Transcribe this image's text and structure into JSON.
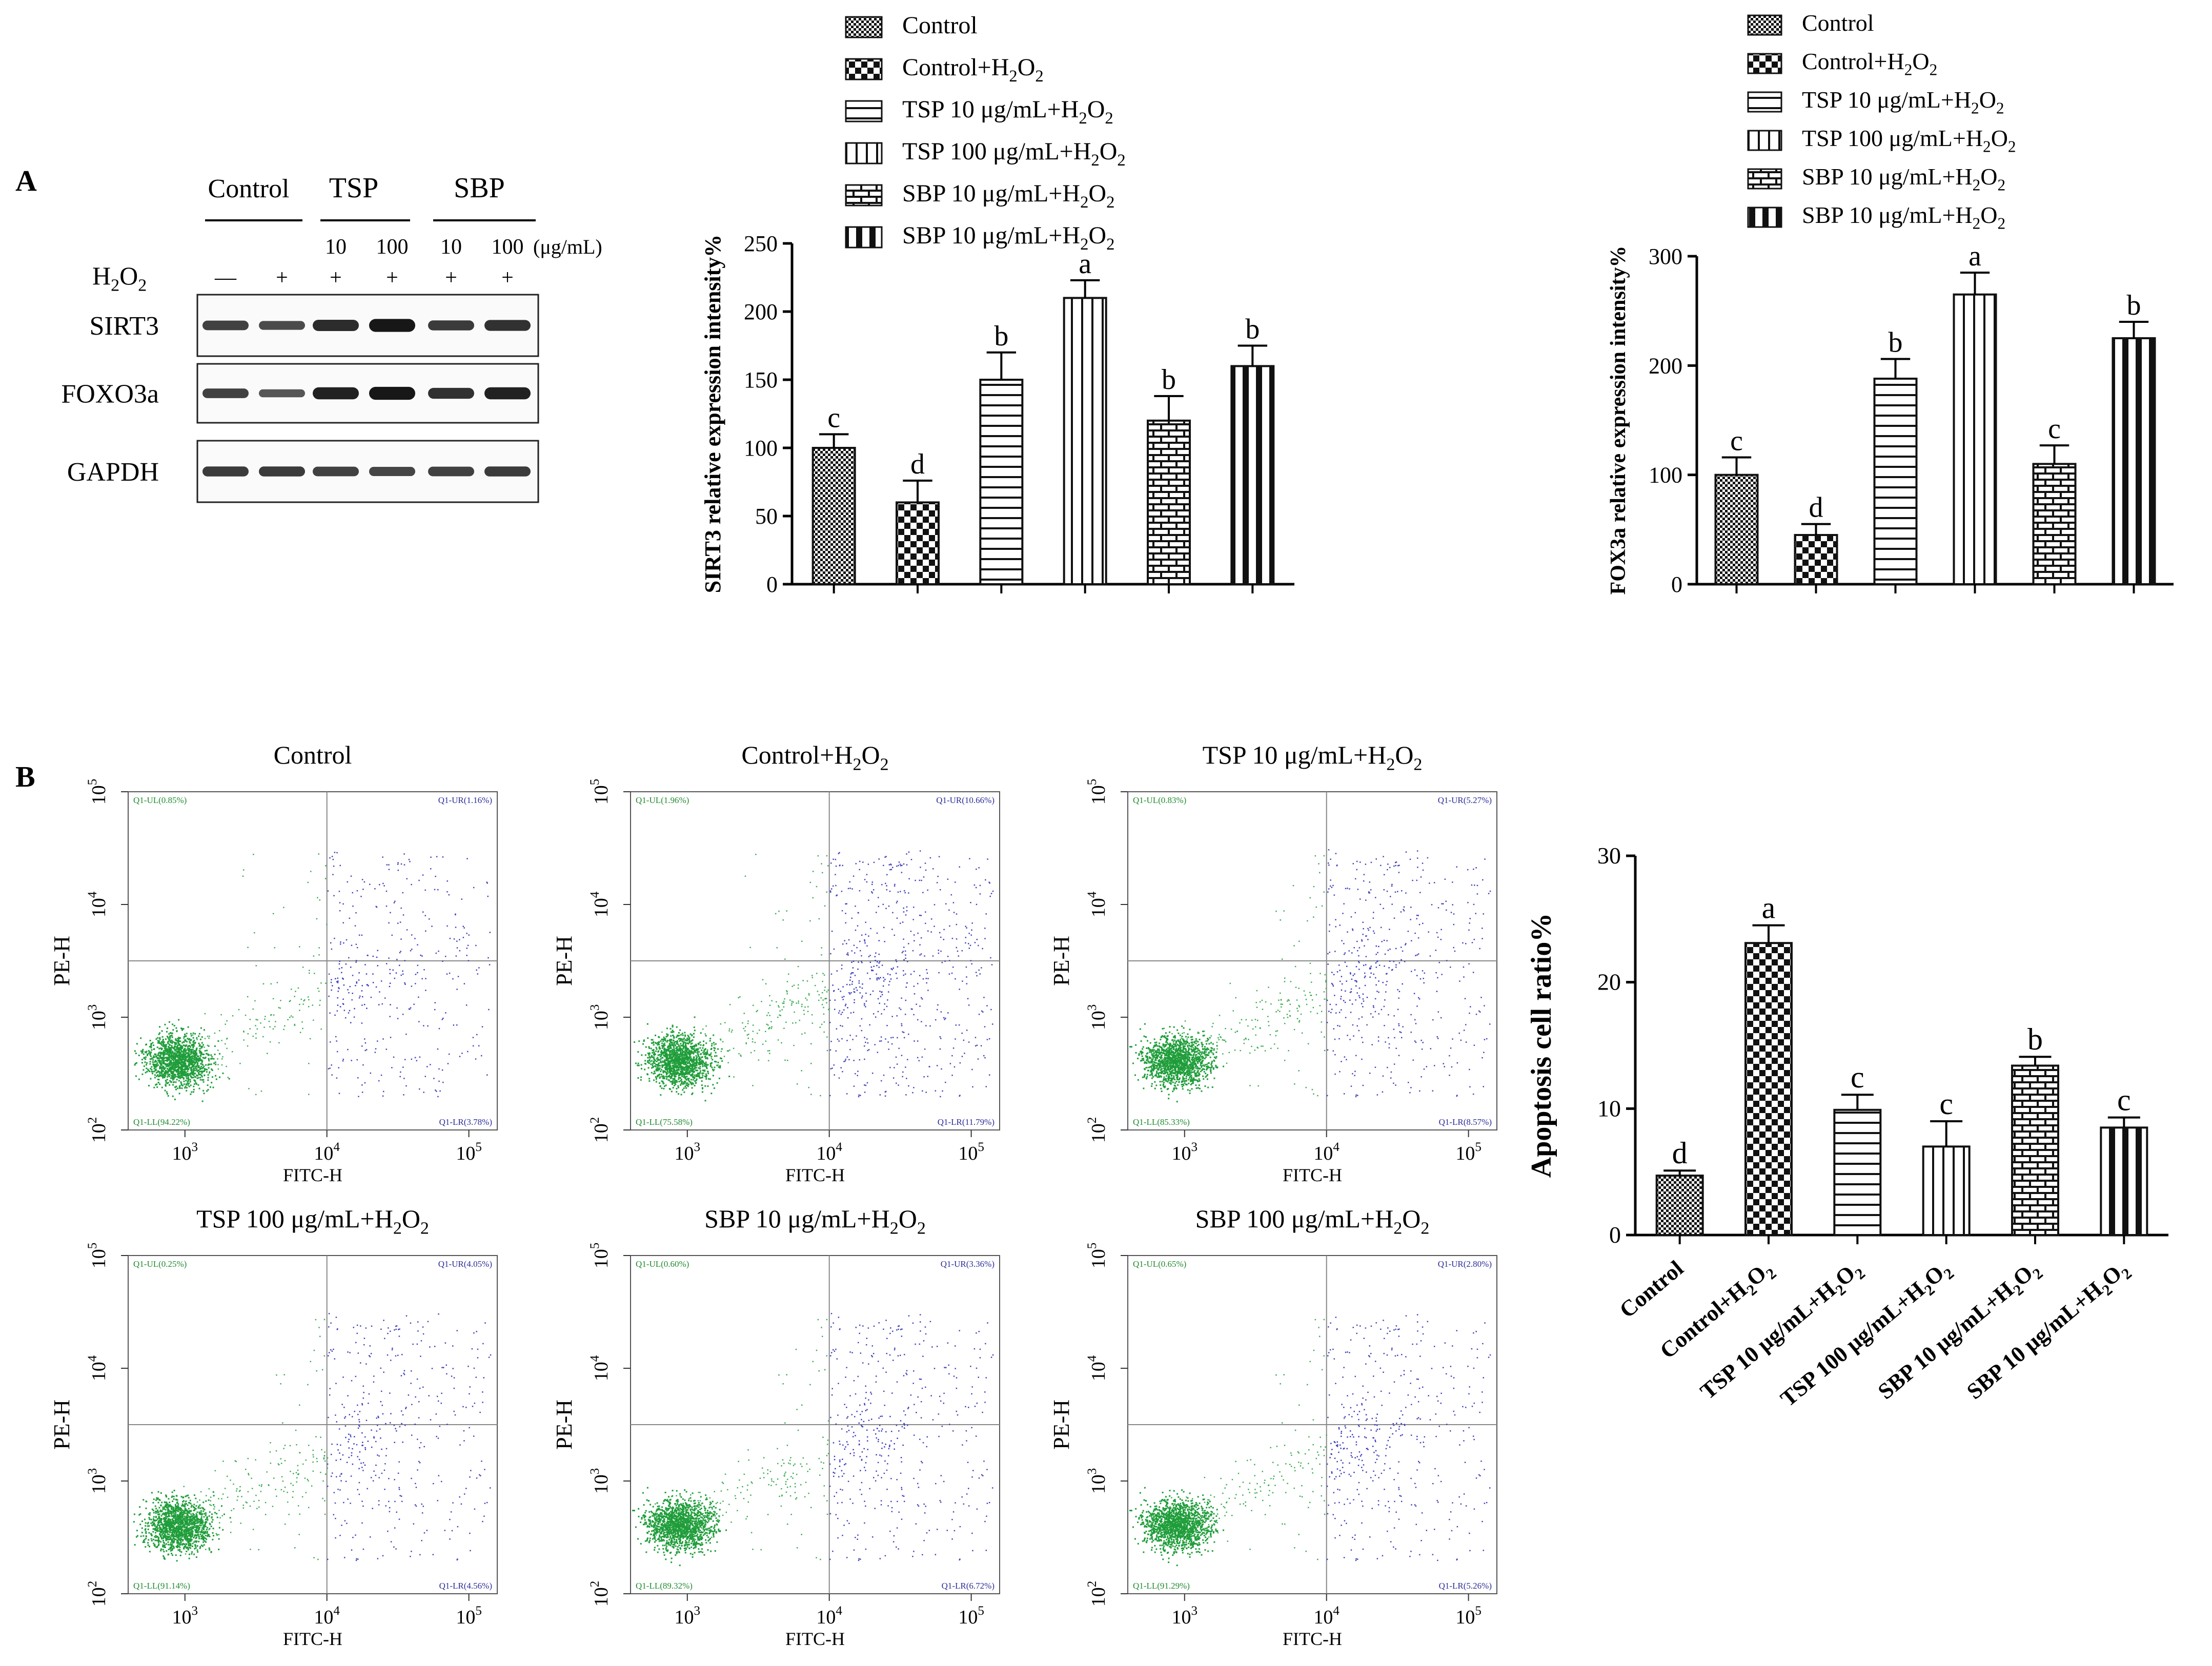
{
  "panels": {
    "a": "A",
    "b": "B"
  },
  "patterns": [
    "check-small",
    "check-large",
    "hstripe",
    "vstripe-thin",
    "brick",
    "vstripe-thick"
  ],
  "legend_entries": [
    {
      "pre": "Control",
      "sub": "",
      "post": ""
    },
    {
      "pre": "Control+H",
      "sub": "2",
      "post": "O",
      "sub2": "2"
    },
    {
      "pre": "TSP 10 μg/mL+H",
      "sub": "2",
      "post": "O",
      "sub2": "2"
    },
    {
      "pre": "TSP 100 μg/mL+H",
      "sub": "2",
      "post": "O",
      "sub2": "2"
    },
    {
      "pre": "SBP 10 μg/mL+H",
      "sub": "2",
      "post": "O",
      "sub2": "2"
    },
    {
      "pre": "SBP 10 μg/mL+H",
      "sub": "2",
      "post": "O",
      "sub2": "2"
    }
  ],
  "western_blot": {
    "group_headers": [
      "Control",
      "TSP",
      "SBP"
    ],
    "dose_values": [
      "10",
      "100",
      "10",
      "100"
    ],
    "dose_unit": "(μg/mL)",
    "h2o2_label": {
      "pre": "H",
      "sub": "2",
      "post": "O",
      "sub2": "2"
    },
    "h2o2_signs": [
      "—",
      "+",
      "+",
      "+",
      "+",
      "+"
    ],
    "rows": [
      {
        "label": "SIRT3",
        "intensity": [
          0.55,
          0.45,
          0.75,
          0.95,
          0.6,
          0.7
        ]
      },
      {
        "label": "FOXO3a",
        "intensity": [
          0.55,
          0.35,
          0.85,
          0.95,
          0.7,
          0.85
        ]
      },
      {
        "label": "GAPDH",
        "intensity": [
          0.6,
          0.6,
          0.55,
          0.5,
          0.55,
          0.6
        ]
      }
    ]
  },
  "flow_plots": [
    {
      "title": {
        "pre": "Control",
        "sub": "",
        "post": "",
        "sub2": ""
      },
      "q": {
        "ul": "Q1-UL(0.85%)",
        "ur": "Q1-UR(1.16%)",
        "ll": "Q1-LL(94.22%)",
        "lr": "Q1-LR(3.78%)"
      },
      "spread": 0.5
    },
    {
      "title": {
        "pre": "Control+H",
        "sub": "2",
        "post": "O",
        "sub2": "2"
      },
      "q": {
        "ul": "Q1-UL(1.96%)",
        "ur": "Q1-UR(10.66%)",
        "ll": "Q1-LL(75.58%)",
        "lr": "Q1-LR(11.79%)"
      },
      "spread": 1.0
    },
    {
      "title": {
        "pre": "TSP 10 μg/mL+H",
        "sub": "2",
        "post": "O",
        "sub2": "2"
      },
      "q": {
        "ul": "Q1-UL(0.83%)",
        "ur": "Q1-UR(5.27%)",
        "ll": "Q1-LL(85.33%)",
        "lr": "Q1-LR(8.57%)"
      },
      "spread": 0.75
    },
    {
      "title": {
        "pre": "TSP 100 μg/mL+H",
        "sub": "2",
        "post": "O",
        "sub2": "2"
      },
      "q": {
        "ul": "Q1-UL(0.25%)",
        "ur": "Q1-UR(4.05%)",
        "ll": "Q1-LL(91.14%)",
        "lr": "Q1-LR(4.56%)"
      },
      "spread": 0.6
    },
    {
      "title": {
        "pre": "SBP 10 μg/mL+H",
        "sub": "2",
        "post": "O",
        "sub2": "2"
      },
      "q": {
        "ul": "Q1-UL(0.60%)",
        "ur": "Q1-UR(3.36%)",
        "ll": "Q1-LL(89.32%)",
        "lr": "Q1-LR(6.72%)"
      },
      "spread": 0.65
    },
    {
      "title": {
        "pre": "SBP 100 μg/mL+H",
        "sub": "2",
        "post": "O",
        "sub2": "2"
      },
      "q": {
        "ul": "Q1-UL(0.65%)",
        "ur": "Q1-UR(2.80%)",
        "ll": "Q1-LL(91.29%)",
        "lr": "Q1-LR(5.26%)"
      },
      "spread": 0.6
    }
  ],
  "flow_axes": {
    "xlabel": "FITC-H",
    "ylabel": "PE-H",
    "xticks": [
      {
        "base": "10",
        "exp": "3",
        "v": 3
      },
      {
        "base": "10",
        "exp": "4",
        "v": 4
      },
      {
        "base": "10",
        "exp": "5",
        "v": 5
      }
    ],
    "yticks": [
      {
        "base": "10",
        "exp": "2",
        "v": 2
      },
      {
        "base": "10",
        "exp": "3",
        "v": 3
      },
      {
        "base": "10",
        "exp": "4",
        "v": 4
      },
      {
        "base": "10",
        "exp": "5",
        "v": 5
      }
    ],
    "xlim": [
      2.6,
      5.2
    ],
    "ylim": [
      2,
      5
    ]
  },
  "chart_data": [
    {
      "type": "bar",
      "categories": [
        "Control",
        "Control+H2O2",
        "TSP 10 μg/mL+H2O2",
        "TSP 100 μg/mL+H2O2",
        "SBP 10 μg/mL+H2O2",
        "SBP 10 μg/mL+H2O2"
      ],
      "values": [
        100,
        60,
        150,
        210,
        120,
        160
      ],
      "errors": [
        10,
        16,
        20,
        13,
        18,
        15
      ],
      "letters": [
        "c",
        "d",
        "b",
        "a",
        "b",
        "b"
      ],
      "ylabel": "SIRT3 relative expression intensity%",
      "ylim": [
        0,
        250
      ],
      "yticks": [
        0,
        50,
        100,
        150,
        200,
        250
      ]
    },
    {
      "type": "bar",
      "categories": [
        "Control",
        "Control+H2O2",
        "TSP 10 μg/mL+H2O2",
        "TSP 100 μg/mL+H2O2",
        "SBP 10 μg/mL+H2O2",
        "SBP 10 μg/mL+H2O2"
      ],
      "values": [
        100,
        45,
        188,
        265,
        110,
        225
      ],
      "errors": [
        16,
        10,
        18,
        20,
        17,
        15
      ],
      "letters": [
        "c",
        "d",
        "b",
        "a",
        "c",
        "b"
      ],
      "ylabel": "FOX3a relative expression intensity%",
      "ylim": [
        0,
        300
      ],
      "yticks": [
        0,
        100,
        200,
        300
      ]
    },
    {
      "type": "bar",
      "categories": [
        "Control",
        "Control+H2O2",
        "TSP 10 μg/mL+H2O2",
        "TSP 100 μg/mL+H2O2",
        "SBP 10 μg/mL+H2O2",
        "SBP 10 μg/mL+H2O2"
      ],
      "values": [
        4.7,
        23.1,
        9.9,
        7.0,
        13.4,
        8.5
      ],
      "errors": [
        0.4,
        1.4,
        1.2,
        2.0,
        0.7,
        0.8
      ],
      "letters": [
        "d",
        "a",
        "c",
        "c",
        "b",
        "c"
      ],
      "ylabel": "Apoptosis cell ratio%",
      "ylim": [
        0,
        30
      ],
      "yticks": [
        0,
        10,
        20,
        30
      ]
    }
  ]
}
